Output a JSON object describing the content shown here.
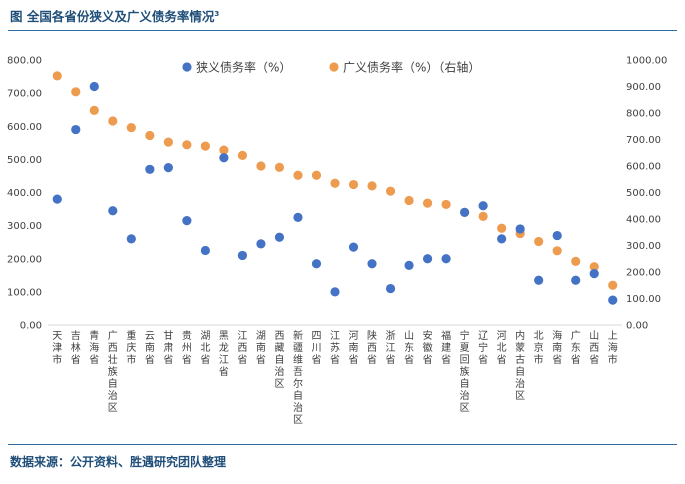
{
  "figure": {
    "title": "图  全国各省份狭义及广义债务率情况",
    "title_sup": "3",
    "source": "数据来源：公开资料、胜遇研究团队整理"
  },
  "colors": {
    "narrow": "#4472c4",
    "broad": "#ed9b4f",
    "axis": "#d9d9d9",
    "rule": "#2e6da4"
  },
  "chart_data": {
    "type": "scatter",
    "categories": [
      "天津市",
      "吉林省",
      "青海省",
      "广西壮族自治区",
      "重庆市",
      "云南省",
      "甘肃省",
      "贵州省",
      "湖北省",
      "黑龙江省",
      "江西省",
      "湖南省",
      "西藏自治区",
      "新疆维吾尔自治区",
      "四川省",
      "江苏省",
      "河南省",
      "陕西省",
      "浙江省",
      "山东省",
      "安徽省",
      "福建省",
      "宁夏回族自治区",
      "辽宁省",
      "河北省",
      "内蒙古自治区",
      "北京市",
      "海南省",
      "广东省",
      "山西省",
      "上海市"
    ],
    "series": [
      {
        "name": "狭义债务率（%）",
        "axis": "left",
        "values": [
          380,
          590,
          720,
          345,
          260,
          470,
          475,
          315,
          225,
          505,
          210,
          245,
          265,
          325,
          185,
          100,
          235,
          185,
          110,
          180,
          200,
          200,
          340,
          360,
          260,
          290,
          135,
          270,
          135,
          155,
          75
        ]
      },
      {
        "name": "广义债务率（%）（右轴）",
        "axis": "right",
        "values": [
          940,
          880,
          810,
          770,
          745,
          715,
          690,
          680,
          675,
          660,
          640,
          600,
          595,
          565,
          565,
          535,
          530,
          525,
          505,
          470,
          460,
          455,
          425,
          410,
          365,
          345,
          315,
          280,
          240,
          220,
          150
        ]
      }
    ],
    "ylim_left": [
      0,
      800
    ],
    "yticks_left": [
      "0.00",
      "100.00",
      "200.00",
      "300.00",
      "400.00",
      "500.00",
      "600.00",
      "700.00",
      "800.00"
    ],
    "ylim_right": [
      0,
      1000
    ],
    "yticks_right": [
      "0.00",
      "100.00",
      "200.00",
      "300.00",
      "400.00",
      "500.00",
      "600.00",
      "700.00",
      "800.00",
      "900.00",
      "1000.00"
    ],
    "legend": [
      "狭义债务率（%）",
      "广义债务率（%）（右轴）"
    ],
    "legend_position": "top-center",
    "grid": false
  }
}
